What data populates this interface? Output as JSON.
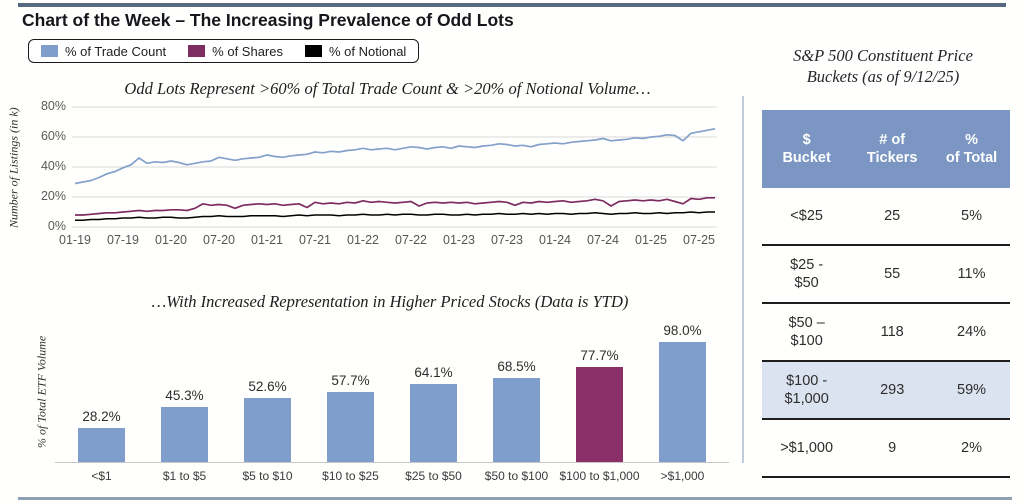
{
  "page": {
    "title": "Chart of the Week – The Increasing Prevalence of Odd Lots"
  },
  "colors": {
    "blue": "#7f9ecb",
    "line_blue": "#84a1cb",
    "purple_line": "#7e2d62",
    "purple_bar": "#8b2f68",
    "black": "#000000",
    "grid": "#d9d9d9",
    "table_header_bg": "#7b96c2",
    "table_highlight_bg": "#dce3f0",
    "top_rule": "#57697f",
    "bottom_rule": "#91a1b4"
  },
  "legend": {
    "items": [
      {
        "label": "% of Trade Count",
        "color": "#7f9ecb"
      },
      {
        "label": "% of Shares",
        "color": "#7e2d62"
      },
      {
        "label": "% of Notional",
        "color": "#000000"
      }
    ]
  },
  "chart_data": [
    {
      "type": "line",
      "title": "Odd Lots Represent >60% of Total Trade Count & >20% of Notional Volume…",
      "ylabel": "Number of Listings (in k)",
      "ylim": [
        0,
        80
      ],
      "ytick_labels": [
        "80%",
        "60%",
        "40%",
        "20%",
        "0%"
      ],
      "xtick_labels": [
        "01-19",
        "07-19",
        "01-20",
        "07-20",
        "01-21",
        "07-21",
        "01-22",
        "07-22",
        "01-23",
        "07-23",
        "01-24",
        "07-24",
        "01-25",
        "07-25"
      ],
      "x_months_start": "2019-01",
      "x_months_end": "2025-09",
      "grid": true,
      "legend_position": "top-left-outside",
      "series": [
        {
          "name": "% of Trade Count",
          "color": "#84a1cb",
          "width": 1.7,
          "values": [
            29,
            30,
            31,
            33,
            35.5,
            37,
            39.5,
            41.5,
            46,
            42.5,
            43.5,
            43,
            44,
            43,
            41.5,
            42.5,
            43.5,
            44,
            46.5,
            45.5,
            44.5,
            45.5,
            46,
            46.5,
            48,
            47,
            46.5,
            47.5,
            48,
            48.5,
            50,
            49.5,
            50.5,
            50,
            51,
            51.5,
            52.5,
            51.5,
            52,
            52.5,
            51.5,
            52.5,
            53.5,
            53,
            52,
            53,
            53.5,
            52.5,
            54,
            53.5,
            53,
            54,
            54.5,
            55.5,
            55,
            54,
            54.5,
            53.5,
            55,
            55.5,
            56,
            55.5,
            56.5,
            57,
            57.5,
            58,
            59,
            57.5,
            58,
            58.5,
            59.5,
            59,
            60,
            60.5,
            61.5,
            61,
            57.5,
            62.5,
            63.5,
            64.5,
            65.5
          ]
        },
        {
          "name": "% of Shares",
          "color": "#7e2d62",
          "width": 1.7,
          "values": [
            8,
            8,
            8.5,
            9,
            9.5,
            9.5,
            10,
            10.5,
            11,
            10.5,
            11,
            11,
            11.5,
            11.5,
            11,
            12.5,
            15.5,
            14.5,
            15,
            14.5,
            12.5,
            14.5,
            15,
            15.5,
            15,
            15.5,
            14.5,
            15,
            15.5,
            13,
            16.5,
            15.5,
            16,
            15.5,
            16.5,
            16,
            17.5,
            16.5,
            17,
            16.5,
            16,
            16.5,
            17,
            14,
            16,
            16.5,
            16,
            16.5,
            16,
            16.5,
            15.5,
            16,
            16.5,
            17,
            16.5,
            14.5,
            16.5,
            16,
            17,
            16.5,
            17,
            17.5,
            16.5,
            17,
            17.5,
            18.5,
            17.5,
            14,
            17,
            17.5,
            18,
            17.5,
            18,
            17.5,
            18.5,
            17,
            15.5,
            19,
            18.5,
            19.5,
            19.5
          ]
        },
        {
          "name": "% of Notional",
          "color": "#000000",
          "width": 1.5,
          "values": [
            4.5,
            4.5,
            5,
            5,
            5.5,
            5.5,
            6,
            6,
            6.5,
            6,
            6,
            6.5,
            6.5,
            6,
            6,
            6.5,
            7,
            7,
            7.5,
            7,
            7,
            7,
            7.5,
            7.5,
            7.5,
            7.5,
            7,
            7.5,
            8,
            7.5,
            8,
            8,
            8,
            7.5,
            8,
            8,
            8.5,
            8,
            8,
            8.5,
            8,
            8.5,
            8.5,
            8,
            8,
            8.5,
            8.5,
            8,
            8,
            8.5,
            8,
            8.5,
            8.5,
            9,
            8.5,
            8.5,
            9,
            8.5,
            9,
            8.5,
            9,
            9,
            8.5,
            9,
            9,
            9.5,
            9,
            8.5,
            9,
            9,
            9.5,
            9,
            9,
            9.5,
            9,
            9.5,
            9.5,
            10,
            9.5,
            10,
            10
          ]
        }
      ]
    },
    {
      "type": "bar",
      "title": "…With Increased Representation in Higher Priced Stocks (Data is YTD)",
      "ylabel": "% of Total ETF Volume",
      "ylim": [
        0,
        100
      ],
      "grid": false,
      "categories": [
        "<$1",
        "$1 to $5",
        "$5 to $10",
        "$10 to $25",
        "$25 to $50",
        "$50 to $100",
        "$100 to $1,000",
        ">$1,000"
      ],
      "values": [
        28.2,
        45.3,
        52.6,
        57.7,
        64.1,
        68.5,
        77.7,
        98.0
      ],
      "value_labels": [
        "28.2%",
        "45.3%",
        "52.6%",
        "57.7%",
        "64.1%",
        "68.5%",
        "77.7%",
        "98.0%"
      ],
      "bar_colors": [
        "#7f9ecb",
        "#7f9ecb",
        "#7f9ecb",
        "#7f9ecb",
        "#7f9ecb",
        "#7f9ecb",
        "#8b2f68",
        "#7f9ecb"
      ]
    },
    {
      "type": "table",
      "title": "S&P 500 Constituent Price\nBuckets (as of 9/12/25)",
      "headers": [
        "$\nBucket",
        "# of\nTickers",
        "%\nof Total"
      ],
      "rows": [
        {
          "bucket": "<$25",
          "tickers": "25",
          "pct_of_total": "5%",
          "highlight": false
        },
        {
          "bucket": "$25 -\n$50",
          "tickers": "55",
          "pct_of_total": "11%",
          "highlight": false
        },
        {
          "bucket": "$50 –\n$100",
          "tickers": "118",
          "pct_of_total": "24%",
          "highlight": false
        },
        {
          "bucket": "$100 -\n$1,000",
          "tickers": "293",
          "pct_of_total": "59%",
          "highlight": true
        },
        {
          "bucket": ">$1,000",
          "tickers": "9",
          "pct_of_total": "2%",
          "highlight": false
        }
      ]
    }
  ],
  "side_table": {
    "title": "S&P 500 Constituent Price\nBuckets (as of 9/12/25)"
  }
}
